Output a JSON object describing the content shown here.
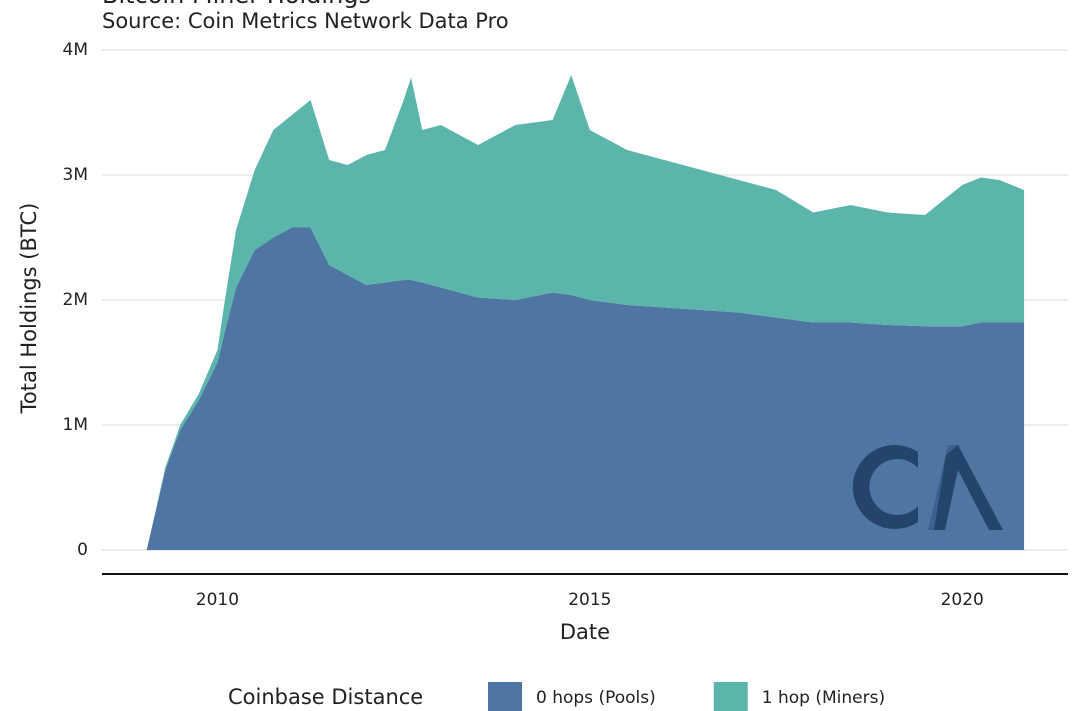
{
  "chart_data": {
    "type": "stacked_area",
    "title": "Bitcoin Miner Holdings",
    "subtitle": "Source: Coin Metrics Network Data Pro",
    "x_label": "Date",
    "y_label": "Total Holdings (BTC)",
    "legend_title": "Coinbase Distance",
    "legend_position": "bottom",
    "grid": true,
    "x": [
      2009.05,
      2009.3,
      2009.5,
      2009.75,
      2010,
      2010.1,
      2010.25,
      2010.5,
      2010.75,
      2011,
      2011.25,
      2011.5,
      2011.75,
      2012,
      2012.25,
      2012.5,
      2012.6,
      2012.75,
      2013,
      2013.5,
      2014,
      2014.5,
      2014.75,
      2015,
      2015.5,
      2016,
      2016.5,
      2017,
      2017.5,
      2018,
      2018.5,
      2019,
      2019.5,
      2020,
      2020.25,
      2020.5,
      2020.83
    ],
    "series": [
      {
        "name": "0 hops (Pools)",
        "color": "#4f76a3",
        "values": [
          0,
          640000,
          960000,
          1200000,
          1500000,
          1750000,
          2100000,
          2400000,
          2500000,
          2580000,
          2580000,
          2280000,
          2200000,
          2120000,
          2140000,
          2160000,
          2160000,
          2140000,
          2100000,
          2020000,
          2000000,
          2060000,
          2040000,
          2000000,
          1960000,
          1940000,
          1920000,
          1900000,
          1860000,
          1820000,
          1820000,
          1800000,
          1790000,
          1790000,
          1820000,
          1820000,
          1820000
        ]
      },
      {
        "name": "1 hop (Miners)",
        "color": "#5bb5ab",
        "values": [
          0,
          20000,
          40000,
          50000,
          100000,
          250000,
          460000,
          640000,
          860000,
          900000,
          1020000,
          840000,
          880000,
          1040000,
          1060000,
          1440000,
          1620000,
          1220000,
          1300000,
          1220000,
          1400000,
          1380000,
          1760000,
          1360000,
          1240000,
          1180000,
          1120000,
          1060000,
          1020000,
          880000,
          940000,
          900000,
          890000,
          1130000,
          1160000,
          1140000,
          1060000
        ]
      }
    ],
    "xlim": [
      2008.45,
      2021.42
    ],
    "xticks": [
      2010,
      2015,
      2020
    ],
    "ylim": [
      0,
      4000000
    ],
    "yticks": [
      {
        "value": 0,
        "label": "0"
      },
      {
        "value": 1000000,
        "label": "1M"
      },
      {
        "value": 2000000,
        "label": "2M"
      },
      {
        "value": 3000000,
        "label": "3M"
      },
      {
        "value": 4000000,
        "label": "4M"
      }
    ]
  }
}
